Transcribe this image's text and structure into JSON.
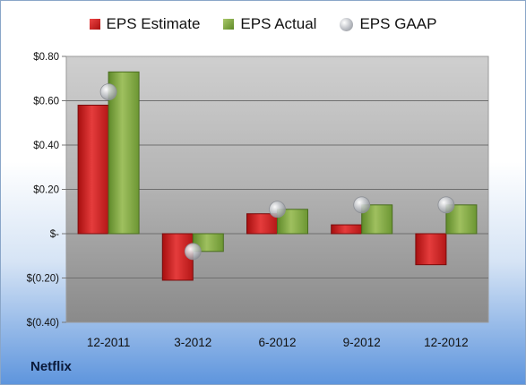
{
  "chart_data": {
    "type": "bar",
    "title": "",
    "xlabel": "",
    "ylabel": "",
    "categories": [
      "12-2011",
      "3-2012",
      "6-2012",
      "9-2012",
      "12-2012"
    ],
    "series": [
      {
        "name": "EPS Estimate",
        "kind": "bar",
        "color": "#c41e1e",
        "values": [
          0.58,
          -0.21,
          0.09,
          0.04,
          -0.14
        ]
      },
      {
        "name": "EPS Actual",
        "kind": "bar",
        "color": "#7ea33f",
        "values": [
          0.73,
          -0.08,
          0.11,
          0.13,
          0.13
        ]
      },
      {
        "name": "EPS GAAP",
        "kind": "scatter",
        "color": "#b5b8be",
        "values": [
          0.64,
          -0.08,
          0.11,
          0.13,
          0.13
        ]
      }
    ],
    "ylim": [
      -0.4,
      0.8
    ],
    "yticks": [
      0.8,
      0.6,
      0.4,
      0.2,
      0,
      -0.2,
      -0.4
    ],
    "ytick_labels": [
      "$0.80",
      "$0.60",
      "$0.40",
      "$0.20",
      "$-",
      "$(0.20)",
      "$(0.40)"
    ],
    "grid": true,
    "legend_position": "top"
  },
  "footer": {
    "company": "Netflix"
  }
}
